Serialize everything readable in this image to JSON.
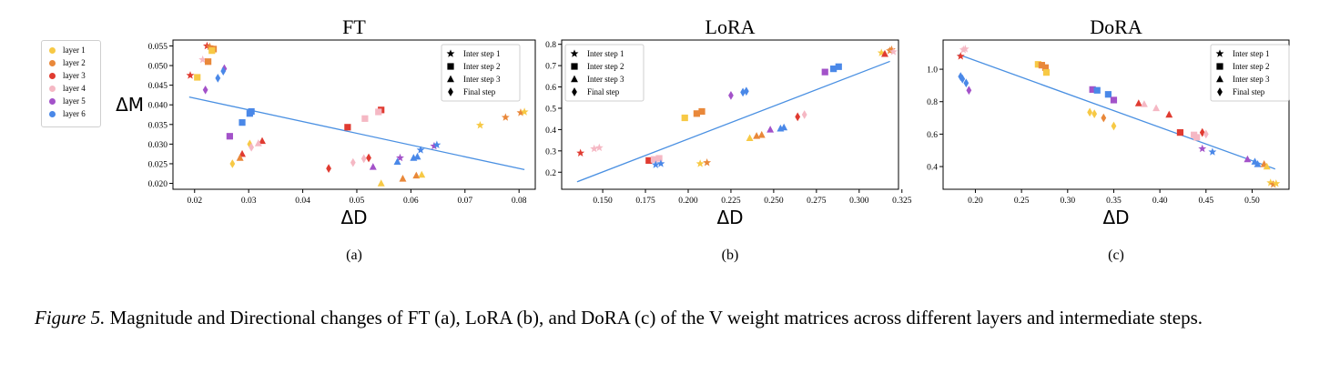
{
  "figure": {
    "layer_legend": [
      {
        "label": "layer 1",
        "color": "#f7c945"
      },
      {
        "label": "layer 2",
        "color": "#e9883a"
      },
      {
        "label": "layer 3",
        "color": "#e03b31"
      },
      {
        "label": "layer 4",
        "color": "#f5b8c4"
      },
      {
        "label": "layer 5",
        "color": "#a352c9"
      },
      {
        "label": "layer 6",
        "color": "#4a88e8"
      }
    ],
    "step_legend": [
      {
        "label": "Inter step 1",
        "marker": "star"
      },
      {
        "label": "Inter step 2",
        "marker": "square"
      },
      {
        "label": "Inter step 3",
        "marker": "triangle"
      },
      {
        "label": "Final step",
        "marker": "diamond"
      }
    ],
    "trend_color": "#4a90e2"
  },
  "caption": {
    "label": "Figure 5.",
    "text": " Magnitude and Directional changes of FT (a), LoRA (b), and DoRA (c) of the V weight matrices across different layers and intermediate steps."
  },
  "chart_data": [
    {
      "type": "scatter",
      "title": "FT",
      "subcaption": "(a)",
      "xlabel": "ΔD",
      "ylabel": "ΔM",
      "xlim": [
        0.016,
        0.083
      ],
      "ylim": [
        0.0185,
        0.0565
      ],
      "xticks": [
        0.02,
        0.03,
        0.04,
        0.05,
        0.06,
        0.07,
        0.08
      ],
      "xtick_labels": [
        "0.02",
        "0.03",
        "0.04",
        "0.05",
        "0.06",
        "0.07",
        "0.08"
      ],
      "yticks": [
        0.02,
        0.025,
        0.03,
        0.035,
        0.04,
        0.045,
        0.05,
        0.055
      ],
      "ytick_labels": [
        "0.020",
        "0.025",
        "0.030",
        "0.035",
        "0.040",
        "0.045",
        "0.050",
        "0.055"
      ],
      "legend": "upper right",
      "trend_line": [
        [
          0.019,
          0.042
        ],
        [
          0.081,
          0.0235
        ]
      ],
      "points": [
        {
          "x": 0.0223,
          "y": 0.055,
          "layer": 3,
          "step": "star"
        },
        {
          "x": 0.0228,
          "y": 0.0548,
          "layer": 2,
          "step": "star"
        },
        {
          "x": 0.0235,
          "y": 0.0542,
          "layer": 2,
          "step": "square"
        },
        {
          "x": 0.0232,
          "y": 0.0538,
          "layer": 1,
          "step": "square"
        },
        {
          "x": 0.0215,
          "y": 0.0515,
          "layer": 4,
          "step": "star"
        },
        {
          "x": 0.0225,
          "y": 0.051,
          "layer": 2,
          "step": "square"
        },
        {
          "x": 0.0192,
          "y": 0.0475,
          "layer": 3,
          "step": "star"
        },
        {
          "x": 0.0205,
          "y": 0.047,
          "layer": 1,
          "step": "square"
        },
        {
          "x": 0.0255,
          "y": 0.0492,
          "layer": 5,
          "step": "diamond"
        },
        {
          "x": 0.0253,
          "y": 0.0486,
          "layer": 6,
          "step": "diamond"
        },
        {
          "x": 0.0243,
          "y": 0.0468,
          "layer": 6,
          "step": "diamond"
        },
        {
          "x": 0.022,
          "y": 0.0438,
          "layer": 5,
          "step": "diamond"
        },
        {
          "x": 0.0305,
          "y": 0.0383,
          "layer": 6,
          "step": "square"
        },
        {
          "x": 0.0302,
          "y": 0.0378,
          "layer": 6,
          "step": "square"
        },
        {
          "x": 0.0288,
          "y": 0.0355,
          "layer": 6,
          "step": "square"
        },
        {
          "x": 0.0265,
          "y": 0.032,
          "layer": 5,
          "step": "square"
        },
        {
          "x": 0.0325,
          "y": 0.0308,
          "layer": 3,
          "step": "triangle"
        },
        {
          "x": 0.0318,
          "y": 0.0302,
          "layer": 4,
          "step": "triangle"
        },
        {
          "x": 0.0302,
          "y": 0.03,
          "layer": 1,
          "step": "diamond"
        },
        {
          "x": 0.0305,
          "y": 0.0292,
          "layer": 4,
          "step": "diamond"
        },
        {
          "x": 0.0288,
          "y": 0.0275,
          "layer": 3,
          "step": "triangle"
        },
        {
          "x": 0.0284,
          "y": 0.0265,
          "layer": 2,
          "step": "triangle"
        },
        {
          "x": 0.027,
          "y": 0.025,
          "layer": 1,
          "step": "diamond"
        },
        {
          "x": 0.0545,
          "y": 0.0387,
          "layer": 3,
          "step": "square"
        },
        {
          "x": 0.054,
          "y": 0.0382,
          "layer": 4,
          "step": "square"
        },
        {
          "x": 0.0483,
          "y": 0.0343,
          "layer": 3,
          "step": "square"
        },
        {
          "x": 0.0515,
          "y": 0.0365,
          "layer": 4,
          "step": "square"
        },
        {
          "x": 0.0448,
          "y": 0.0238,
          "layer": 3,
          "step": "diamond"
        },
        {
          "x": 0.0493,
          "y": 0.0253,
          "layer": 4,
          "step": "diamond"
        },
        {
          "x": 0.0513,
          "y": 0.0263,
          "layer": 4,
          "step": "diamond"
        },
        {
          "x": 0.0522,
          "y": 0.0265,
          "layer": 3,
          "step": "diamond"
        },
        {
          "x": 0.053,
          "y": 0.0242,
          "layer": 5,
          "step": "triangle"
        },
        {
          "x": 0.0545,
          "y": 0.02,
          "layer": 1,
          "step": "triangle"
        },
        {
          "x": 0.058,
          "y": 0.0265,
          "layer": 5,
          "step": "star"
        },
        {
          "x": 0.0575,
          "y": 0.0255,
          "layer": 6,
          "step": "triangle"
        },
        {
          "x": 0.0585,
          "y": 0.0212,
          "layer": 2,
          "step": "triangle"
        },
        {
          "x": 0.0605,
          "y": 0.0265,
          "layer": 6,
          "step": "triangle"
        },
        {
          "x": 0.0612,
          "y": 0.0268,
          "layer": 6,
          "step": "triangle"
        },
        {
          "x": 0.0618,
          "y": 0.0285,
          "layer": 6,
          "step": "star"
        },
        {
          "x": 0.0643,
          "y": 0.0295,
          "layer": 5,
          "step": "star"
        },
        {
          "x": 0.0648,
          "y": 0.0298,
          "layer": 6,
          "step": "star"
        },
        {
          "x": 0.061,
          "y": 0.022,
          "layer": 2,
          "step": "triangle"
        },
        {
          "x": 0.062,
          "y": 0.0222,
          "layer": 1,
          "step": "triangle"
        },
        {
          "x": 0.0728,
          "y": 0.0348,
          "layer": 1,
          "step": "star"
        },
        {
          "x": 0.0775,
          "y": 0.0368,
          "layer": 2,
          "step": "star"
        },
        {
          "x": 0.0803,
          "y": 0.038,
          "layer": 2,
          "step": "star"
        },
        {
          "x": 0.081,
          "y": 0.0382,
          "layer": 1,
          "step": "star"
        }
      ]
    },
    {
      "type": "scatter",
      "title": "LoRA",
      "subcaption": "(b)",
      "xlabel": "ΔD",
      "ylabel": "",
      "xlim": [
        0.126,
        0.323
      ],
      "ylim": [
        0.12,
        0.82
      ],
      "xticks": [
        0.15,
        0.175,
        0.2,
        0.225,
        0.25,
        0.275,
        0.3,
        0.325
      ],
      "xtick_labels": [
        "0.150",
        "0.175",
        "0.200",
        "0.225",
        "0.250",
        "0.275",
        "0.300",
        "0.325"
      ],
      "yticks": [
        0.2,
        0.3,
        0.4,
        0.5,
        0.6,
        0.7,
        0.8
      ],
      "ytick_labels": [
        "0.2",
        "0.3",
        "0.4",
        "0.5",
        "0.6",
        "0.7",
        "0.8"
      ],
      "legend": "upper left",
      "trend_line": [
        [
          0.135,
          0.155
        ],
        [
          0.318,
          0.72
        ]
      ],
      "points": [
        {
          "x": 0.137,
          "y": 0.29,
          "layer": 3,
          "step": "star"
        },
        {
          "x": 0.145,
          "y": 0.31,
          "layer": 4,
          "step": "star"
        },
        {
          "x": 0.148,
          "y": 0.315,
          "layer": 4,
          "step": "star"
        },
        {
          "x": 0.177,
          "y": 0.255,
          "layer": 3,
          "step": "square"
        },
        {
          "x": 0.18,
          "y": 0.26,
          "layer": 4,
          "step": "square"
        },
        {
          "x": 0.183,
          "y": 0.265,
          "layer": 4,
          "step": "square"
        },
        {
          "x": 0.181,
          "y": 0.235,
          "layer": 6,
          "step": "star"
        },
        {
          "x": 0.184,
          "y": 0.24,
          "layer": 6,
          "step": "star"
        },
        {
          "x": 0.198,
          "y": 0.455,
          "layer": 1,
          "step": "square"
        },
        {
          "x": 0.205,
          "y": 0.475,
          "layer": 2,
          "step": "square"
        },
        {
          "x": 0.208,
          "y": 0.485,
          "layer": 2,
          "step": "square"
        },
        {
          "x": 0.207,
          "y": 0.24,
          "layer": 1,
          "step": "star"
        },
        {
          "x": 0.211,
          "y": 0.245,
          "layer": 2,
          "step": "star"
        },
        {
          "x": 0.225,
          "y": 0.56,
          "layer": 5,
          "step": "diamond"
        },
        {
          "x": 0.232,
          "y": 0.575,
          "layer": 6,
          "step": "diamond"
        },
        {
          "x": 0.234,
          "y": 0.58,
          "layer": 6,
          "step": "diamond"
        },
        {
          "x": 0.236,
          "y": 0.36,
          "layer": 1,
          "step": "triangle"
        },
        {
          "x": 0.24,
          "y": 0.37,
          "layer": 2,
          "step": "triangle"
        },
        {
          "x": 0.243,
          "y": 0.375,
          "layer": 2,
          "step": "triangle"
        },
        {
          "x": 0.248,
          "y": 0.4,
          "layer": 5,
          "step": "triangle"
        },
        {
          "x": 0.254,
          "y": 0.405,
          "layer": 6,
          "step": "triangle"
        },
        {
          "x": 0.256,
          "y": 0.41,
          "layer": 6,
          "step": "triangle"
        },
        {
          "x": 0.264,
          "y": 0.46,
          "layer": 3,
          "step": "diamond"
        },
        {
          "x": 0.268,
          "y": 0.47,
          "layer": 4,
          "step": "diamond"
        },
        {
          "x": 0.28,
          "y": 0.67,
          "layer": 5,
          "step": "square"
        },
        {
          "x": 0.285,
          "y": 0.685,
          "layer": 6,
          "step": "square"
        },
        {
          "x": 0.288,
          "y": 0.695,
          "layer": 6,
          "step": "square"
        },
        {
          "x": 0.313,
          "y": 0.76,
          "layer": 1,
          "step": "star"
        },
        {
          "x": 0.315,
          "y": 0.755,
          "layer": 3,
          "step": "triangle"
        },
        {
          "x": 0.318,
          "y": 0.77,
          "layer": 2,
          "step": "star"
        },
        {
          "x": 0.319,
          "y": 0.775,
          "layer": 2,
          "step": "star"
        },
        {
          "x": 0.32,
          "y": 0.765,
          "layer": 4,
          "step": "star"
        }
      ]
    },
    {
      "type": "scatter",
      "title": "DoRA",
      "subcaption": "(c)",
      "xlabel": "ΔD",
      "ylabel": "",
      "xlim": [
        0.165,
        0.54
      ],
      "ylim": [
        0.26,
        1.18
      ],
      "xticks": [
        0.2,
        0.25,
        0.3,
        0.35,
        0.4,
        0.45,
        0.5
      ],
      "xtick_labels": [
        "0.20",
        "0.25",
        "0.30",
        "0.35",
        "0.40",
        "0.45",
        "0.50"
      ],
      "yticks": [
        0.4,
        0.6,
        0.8,
        1.0
      ],
      "ytick_labels": [
        "0.4",
        "0.6",
        "0.8",
        "1.0"
      ],
      "legend": "upper right",
      "trend_line": [
        [
          0.182,
          1.09
        ],
        [
          0.525,
          0.385
        ]
      ],
      "points": [
        {
          "x": 0.184,
          "y": 1.08,
          "layer": 3,
          "step": "star"
        },
        {
          "x": 0.187,
          "y": 1.12,
          "layer": 4,
          "step": "star"
        },
        {
          "x": 0.189,
          "y": 1.125,
          "layer": 4,
          "step": "star"
        },
        {
          "x": 0.184,
          "y": 0.955,
          "layer": 6,
          "step": "diamond"
        },
        {
          "x": 0.186,
          "y": 0.94,
          "layer": 6,
          "step": "diamond"
        },
        {
          "x": 0.19,
          "y": 0.915,
          "layer": 6,
          "step": "diamond"
        },
        {
          "x": 0.193,
          "y": 0.87,
          "layer": 5,
          "step": "diamond"
        },
        {
          "x": 0.268,
          "y": 1.03,
          "layer": 1,
          "step": "square"
        },
        {
          "x": 0.272,
          "y": 1.025,
          "layer": 2,
          "step": "square"
        },
        {
          "x": 0.276,
          "y": 1.01,
          "layer": 2,
          "step": "square"
        },
        {
          "x": 0.277,
          "y": 0.98,
          "layer": 1,
          "step": "square"
        },
        {
          "x": 0.327,
          "y": 0.875,
          "layer": 5,
          "step": "square"
        },
        {
          "x": 0.332,
          "y": 0.87,
          "layer": 6,
          "step": "square"
        },
        {
          "x": 0.344,
          "y": 0.845,
          "layer": 6,
          "step": "square"
        },
        {
          "x": 0.35,
          "y": 0.81,
          "layer": 5,
          "step": "square"
        },
        {
          "x": 0.324,
          "y": 0.735,
          "layer": 1,
          "step": "diamond"
        },
        {
          "x": 0.329,
          "y": 0.725,
          "layer": 1,
          "step": "diamond"
        },
        {
          "x": 0.339,
          "y": 0.7,
          "layer": 2,
          "step": "diamond"
        },
        {
          "x": 0.35,
          "y": 0.65,
          "layer": 1,
          "step": "diamond"
        },
        {
          "x": 0.377,
          "y": 0.79,
          "layer": 3,
          "step": "triangle"
        },
        {
          "x": 0.383,
          "y": 0.785,
          "layer": 4,
          "step": "triangle"
        },
        {
          "x": 0.396,
          "y": 0.76,
          "layer": 4,
          "step": "triangle"
        },
        {
          "x": 0.41,
          "y": 0.72,
          "layer": 3,
          "step": "triangle"
        },
        {
          "x": 0.422,
          "y": 0.61,
          "layer": 3,
          "step": "square"
        },
        {
          "x": 0.437,
          "y": 0.595,
          "layer": 4,
          "step": "square"
        },
        {
          "x": 0.44,
          "y": 0.58,
          "layer": 4,
          "step": "square"
        },
        {
          "x": 0.446,
          "y": 0.61,
          "layer": 3,
          "step": "diamond"
        },
        {
          "x": 0.45,
          "y": 0.6,
          "layer": 4,
          "step": "diamond"
        },
        {
          "x": 0.446,
          "y": 0.51,
          "layer": 5,
          "step": "star"
        },
        {
          "x": 0.457,
          "y": 0.49,
          "layer": 6,
          "step": "star"
        },
        {
          "x": 0.495,
          "y": 0.445,
          "layer": 5,
          "step": "triangle"
        },
        {
          "x": 0.503,
          "y": 0.43,
          "layer": 6,
          "step": "triangle"
        },
        {
          "x": 0.506,
          "y": 0.415,
          "layer": 6,
          "step": "triangle"
        },
        {
          "x": 0.513,
          "y": 0.415,
          "layer": 2,
          "step": "triangle"
        },
        {
          "x": 0.516,
          "y": 0.4,
          "layer": 1,
          "step": "triangle"
        },
        {
          "x": 0.52,
          "y": 0.3,
          "layer": 1,
          "step": "star"
        },
        {
          "x": 0.523,
          "y": 0.29,
          "layer": 2,
          "step": "star"
        },
        {
          "x": 0.526,
          "y": 0.295,
          "layer": 1,
          "step": "star"
        }
      ]
    }
  ]
}
